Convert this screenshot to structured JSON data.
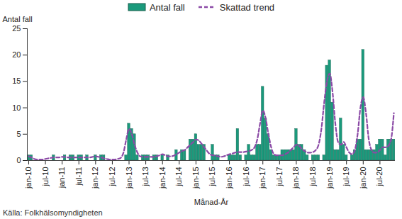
{
  "chart_data": {
    "type": "bar",
    "x_label": "Månad-År",
    "y_label": "Antal fall",
    "caption": "Källa: Folkhälsomyndigheten",
    "legend": "top",
    "grid": false,
    "categories": [
      "jan-10",
      null,
      null,
      null,
      null,
      null,
      "jul-10",
      null,
      null,
      null,
      null,
      null,
      "jan-11",
      null,
      null,
      null,
      null,
      null,
      "jul-11",
      null,
      null,
      null,
      null,
      null,
      "jan-12",
      null,
      null,
      null,
      null,
      null,
      "jul-12",
      null,
      null,
      null,
      null,
      null,
      "jan-13",
      null,
      null,
      null,
      null,
      null,
      "jul-13",
      null,
      null,
      null,
      null,
      null,
      "jan-14",
      null,
      null,
      null,
      null,
      null,
      "jul-14",
      null,
      null,
      null,
      null,
      null,
      "jan-15",
      null,
      null,
      null,
      null,
      null,
      "jul-15",
      null,
      null,
      null,
      null,
      null,
      "jan-16",
      null,
      null,
      null,
      null,
      null,
      "jul-16",
      null,
      null,
      null,
      null,
      null,
      "jan-17",
      null,
      null,
      null,
      null,
      null,
      "jul-17",
      null,
      null,
      null,
      null,
      null,
      "jan-18",
      null,
      null,
      null,
      null,
      null,
      "jul-18",
      null,
      null,
      null,
      null,
      null,
      "jan-19",
      null,
      null,
      null,
      null,
      null,
      "jul-19",
      null,
      null,
      null,
      null,
      null,
      "jan-20",
      null,
      null,
      null,
      null,
      null,
      "jul-20",
      null,
      null,
      null,
      null,
      null
    ],
    "series": [
      {
        "name": "Antal fall",
        "type": "bar",
        "color": "#1a9a7c",
        "values": [
          1,
          1,
          0,
          0,
          0,
          0,
          0,
          0,
          0,
          1,
          0,
          0,
          0,
          1,
          0,
          1,
          1,
          0,
          1,
          1,
          0,
          1,
          0,
          0,
          1,
          0,
          1,
          1,
          0,
          0,
          0,
          0,
          0,
          0,
          0,
          1,
          7,
          6,
          5,
          1,
          0,
          1,
          1,
          1,
          0,
          1,
          1,
          0,
          1,
          0,
          1,
          0,
          0,
          2,
          0,
          2,
          2,
          0,
          4,
          4,
          5,
          3,
          3,
          3,
          0,
          0,
          3,
          1,
          1,
          0,
          0,
          0,
          1,
          1,
          1,
          6,
          1,
          0,
          1,
          3,
          1,
          1,
          3,
          3,
          14,
          8,
          5,
          2,
          1,
          1,
          1,
          2,
          2,
          2,
          2,
          2,
          6,
          3,
          3,
          2,
          1,
          0,
          1,
          1,
          1,
          0,
          1,
          18,
          19,
          11,
          2,
          2,
          8,
          3,
          1,
          0,
          1,
          2,
          4,
          4,
          21,
          2,
          2,
          2,
          2,
          3,
          4,
          4,
          1,
          4,
          4,
          4
        ]
      },
      {
        "name": "Skattad trend",
        "type": "line",
        "line_style": "dashed",
        "color": "#8b4aa6",
        "values": [
          0.8,
          0.6,
          0.3,
          0.2,
          0.2,
          0.2,
          0.3,
          0.4,
          0.5,
          0.6,
          0.6,
          0.6,
          0.7,
          0.7,
          0.6,
          0.6,
          0.6,
          0.6,
          0.6,
          0.6,
          0.6,
          0.6,
          0.6,
          0.7,
          0.8,
          0.7,
          0.6,
          0.4,
          0.3,
          0.2,
          0.2,
          0.2,
          0.3,
          0.5,
          1.5,
          4,
          6,
          5,
          3,
          1.5,
          0.8,
          0.7,
          0.7,
          0.7,
          0.7,
          0.7,
          0.8,
          1,
          1.2,
          1,
          0.8,
          0.8,
          0.9,
          1.2,
          1.5,
          1.8,
          2,
          2.5,
          3,
          3.5,
          4,
          3.8,
          3.2,
          2.5,
          1.8,
          1.2,
          1,
          0.9,
          0.8,
          0.7,
          0.8,
          1,
          1.2,
          1.3,
          1.5,
          1.6,
          1.6,
          1.6,
          1.7,
          1.8,
          2,
          2.5,
          4,
          7,
          9.5,
          8,
          5,
          2.5,
          1.2,
          1,
          1,
          1,
          1.2,
          1.5,
          2,
          2.5,
          3,
          2.8,
          2.2,
          1.8,
          1.5,
          1.5,
          1.6,
          2,
          3,
          6,
          11,
          15,
          16.5,
          13,
          7,
          3.5,
          3,
          3.5,
          2.5,
          1.5,
          1.2,
          2,
          5,
          10,
          12,
          9,
          4,
          2,
          1.5,
          1.5,
          2,
          2.5,
          2.5,
          2.8,
          4,
          9
        ]
      }
    ],
    "ylim": [
      0,
      25
    ],
    "yticks": [
      0,
      5,
      10,
      15,
      20,
      25
    ]
  }
}
